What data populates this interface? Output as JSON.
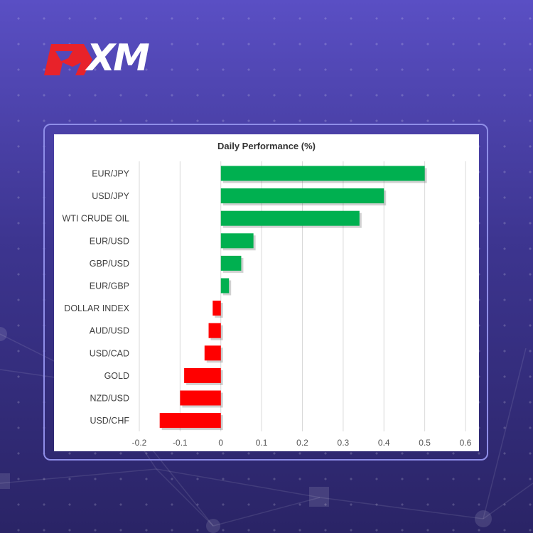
{
  "brand": {
    "logo_text": "XM",
    "logo_color": "#e8222a",
    "background_top": "#5a4fc4",
    "background_bottom": "#2a2466"
  },
  "chart_data": {
    "type": "bar",
    "orientation": "horizontal",
    "title": "Daily Performance (%)",
    "categories": [
      "EUR/JPY",
      "USD/JPY",
      "WTI CRUDE OIL",
      "EUR/USD",
      "GBP/USD",
      "EUR/GBP",
      "DOLLAR INDEX",
      "AUD/USD",
      "USD/CAD",
      "GOLD",
      "NZD/USD",
      "USD/CHF"
    ],
    "values": [
      0.5,
      0.4,
      0.34,
      0.08,
      0.05,
      0.02,
      -0.02,
      -0.03,
      -0.04,
      -0.09,
      -0.1,
      -0.15
    ],
    "xlim": [
      -0.2,
      0.6
    ],
    "xticks": [
      -0.2,
      -0.1,
      0,
      0.1,
      0.2,
      0.3,
      0.4,
      0.5,
      0.6
    ],
    "xtick_labels": [
      "-0.2",
      "-0.1",
      "0",
      "0.1",
      "0.2",
      "0.3",
      "0.4",
      "0.5",
      "0.6"
    ],
    "grid": true,
    "positive_color": "#00b050",
    "negative_color": "#ff0000"
  }
}
